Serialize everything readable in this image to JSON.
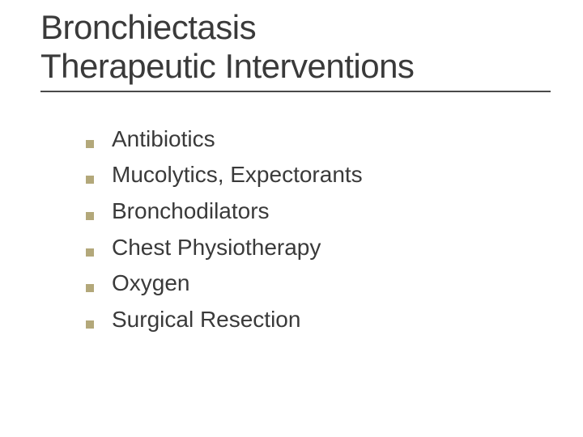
{
  "slide": {
    "title_line1": "Bronchiectasis",
    "title_line2": "Therapeutic Interventions",
    "bullets": [
      "Antibiotics",
      "Mucolytics, Expectorants",
      "Bronchodilators",
      "Chest Physiotherapy",
      "Oxygen",
      "Surgical Resection"
    ],
    "styling": {
      "background_color": "#ffffff",
      "title_color": "#3a3a3a",
      "title_fontsize": 42,
      "title_underline_color": "#4a4a4a",
      "title_underline_width": 2,
      "bullet_marker_color": "#b3a87a",
      "bullet_marker_size": 10,
      "bullet_text_color": "#3a3a3a",
      "bullet_fontsize": 28,
      "font_family": "Verdana"
    }
  }
}
